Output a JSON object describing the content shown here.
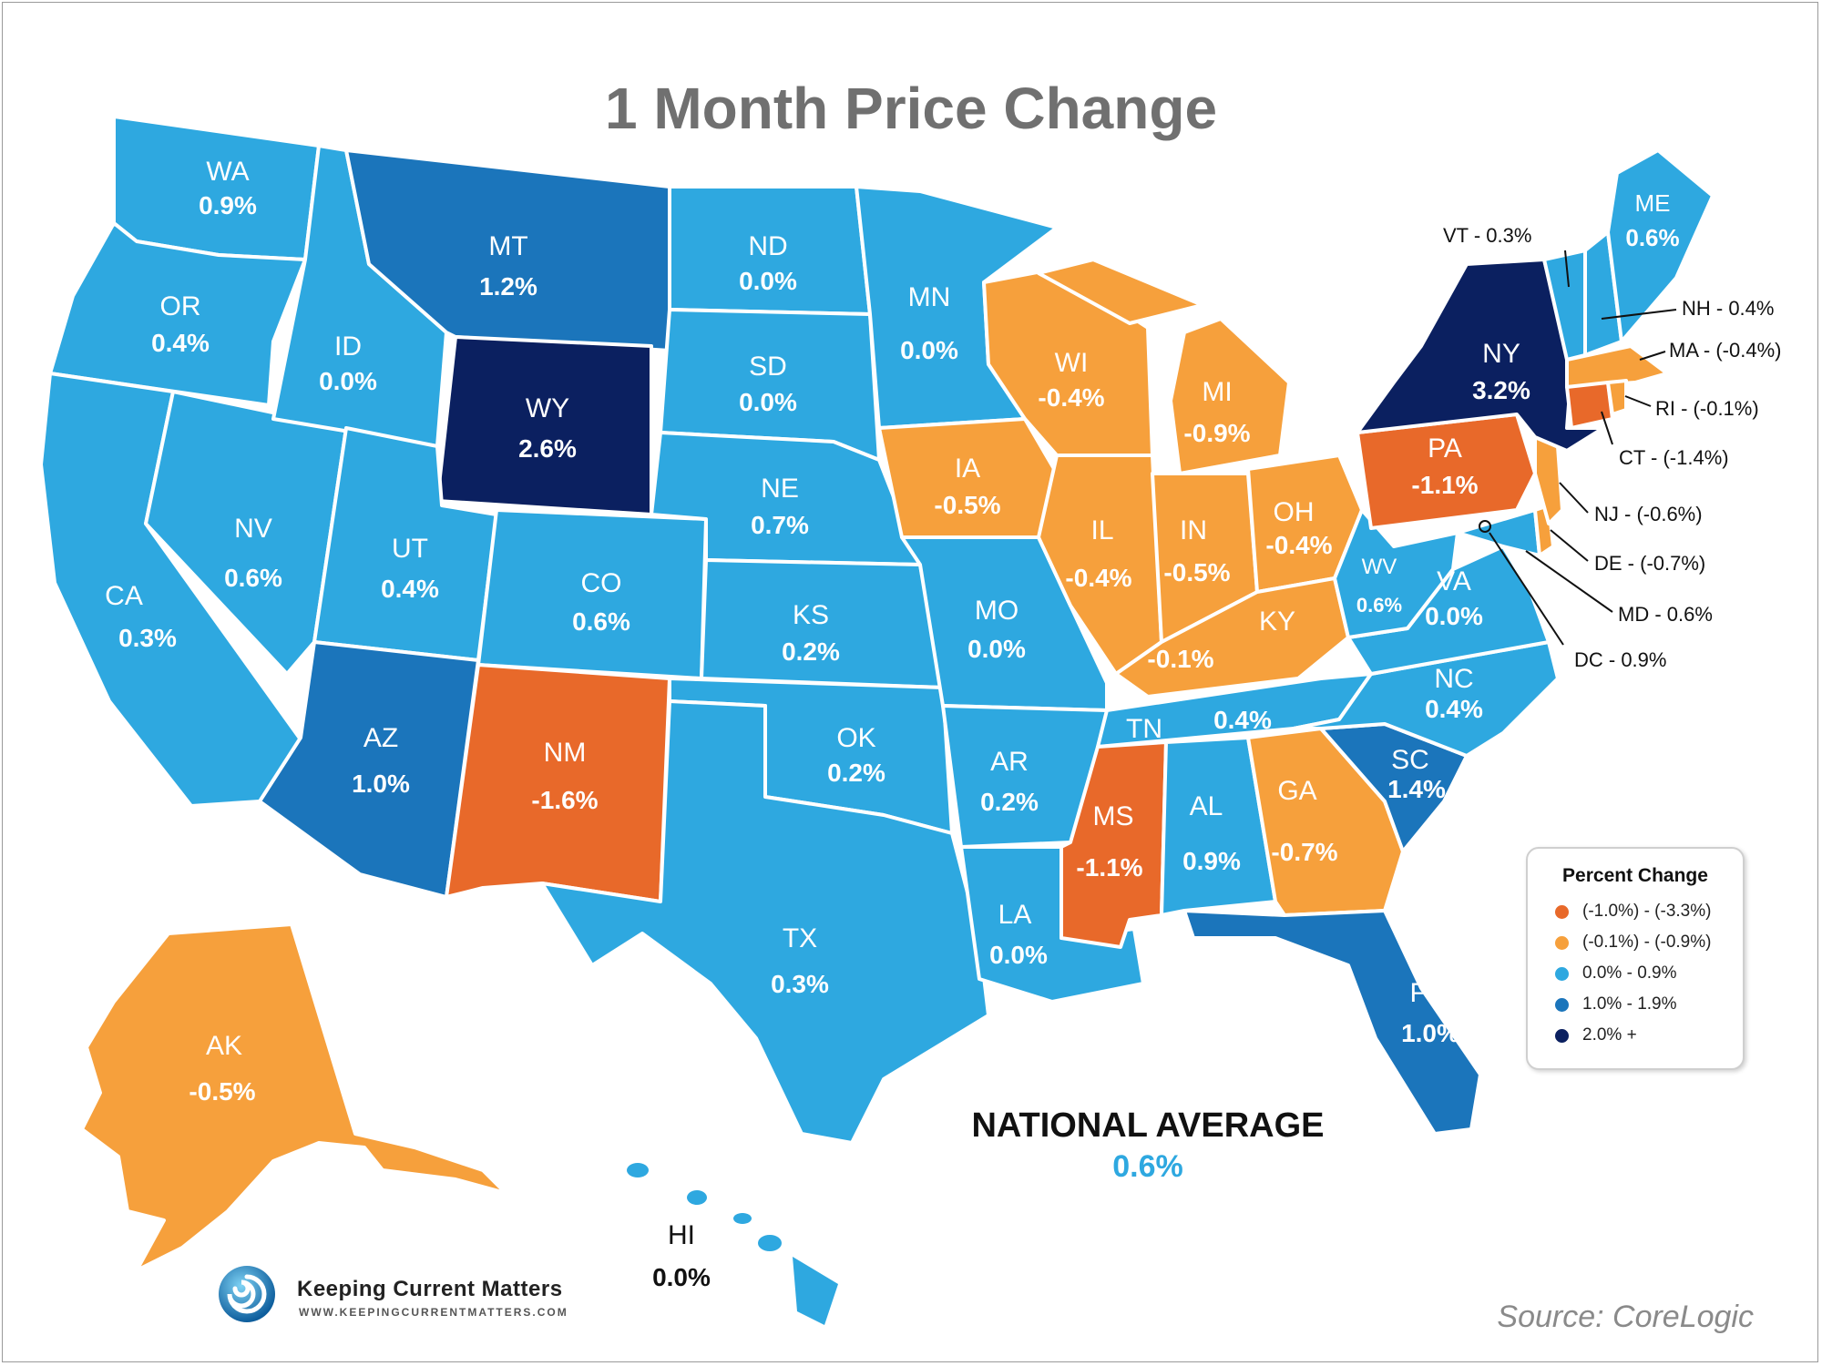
{
  "title": "1 Month Price Change",
  "colors": {
    "tier1_neg_high": "#e8692a",
    "tier2_neg_low": "#f6a03c",
    "tier3_low": "#2ea8e0",
    "tier4_mid": "#1b75bb",
    "tier5_high": "#0b2060"
  },
  "legend": {
    "title": "Percent Change",
    "items": [
      {
        "label": "(-1.0%) - (-3.3%)",
        "color": "#e8692a"
      },
      {
        "label": "(-0.1%) - (-0.9%)",
        "color": "#f6a03c"
      },
      {
        "label": "0.0% - 0.9%",
        "color": "#2ea8e0"
      },
      {
        "label": "1.0% - 1.9%",
        "color": "#1b75bb"
      },
      {
        "label": "2.0% +",
        "color": "#0b2060"
      }
    ]
  },
  "states": {
    "WA": {
      "abbr": "WA",
      "value": "0.9%"
    },
    "OR": {
      "abbr": "OR",
      "value": "0.4%"
    },
    "CA": {
      "abbr": "CA",
      "value": "0.3%"
    },
    "NV": {
      "abbr": "NV",
      "value": "0.6%"
    },
    "ID": {
      "abbr": "ID",
      "value": "0.0%"
    },
    "MT": {
      "abbr": "MT",
      "value": "1.2%"
    },
    "WY": {
      "abbr": "WY",
      "value": "2.6%"
    },
    "UT": {
      "abbr": "UT",
      "value": "0.4%"
    },
    "AZ": {
      "abbr": "AZ",
      "value": "1.0%"
    },
    "CO": {
      "abbr": "CO",
      "value": "0.6%"
    },
    "NM": {
      "abbr": "NM",
      "value": "-1.6%"
    },
    "ND": {
      "abbr": "ND",
      "value": "0.0%"
    },
    "SD": {
      "abbr": "SD",
      "value": "0.0%"
    },
    "NE": {
      "abbr": "NE",
      "value": "0.7%"
    },
    "KS": {
      "abbr": "KS",
      "value": "0.2%"
    },
    "OK": {
      "abbr": "OK",
      "value": "0.2%"
    },
    "TX": {
      "abbr": "TX",
      "value": "0.3%"
    },
    "MN": {
      "abbr": "MN",
      "value": "0.0%"
    },
    "IA": {
      "abbr": "IA",
      "value": "-0.5%"
    },
    "MO": {
      "abbr": "MO",
      "value": "0.0%"
    },
    "AR": {
      "abbr": "AR",
      "value": "0.2%"
    },
    "LA": {
      "abbr": "LA",
      "value": "0.0%"
    },
    "WI": {
      "abbr": "WI",
      "value": "-0.4%"
    },
    "IL": {
      "abbr": "IL",
      "value": "-0.4%"
    },
    "MI": {
      "abbr": "MI",
      "value": "-0.9%"
    },
    "IN": {
      "abbr": "IN",
      "value": "-0.5%"
    },
    "OH": {
      "abbr": "OH",
      "value": "-0.4%"
    },
    "KY": {
      "abbr": "KY",
      "value": "-0.1%"
    },
    "TN": {
      "abbr": "TN",
      "value": "0.4%"
    },
    "MS": {
      "abbr": "MS",
      "value": "-1.1%"
    },
    "AL": {
      "abbr": "AL",
      "value": "0.9%"
    },
    "GA": {
      "abbr": "GA",
      "value": "-0.7%"
    },
    "FL": {
      "abbr": "FL",
      "value": "1.0%"
    },
    "SC": {
      "abbr": "SC",
      "value": "1.4%"
    },
    "NC": {
      "abbr": "NC",
      "value": "0.4%"
    },
    "VA": {
      "abbr": "VA",
      "value": "0.0%"
    },
    "WV": {
      "abbr": "WV",
      "value": "0.6%"
    },
    "PA": {
      "abbr": "PA",
      "value": "-1.1%"
    },
    "NY": {
      "abbr": "NY",
      "value": "3.2%"
    },
    "ME": {
      "abbr": "ME",
      "value": "0.6%"
    },
    "AK": {
      "abbr": "AK",
      "value": "-0.5%"
    },
    "HI": {
      "abbr": "HI",
      "value": "0.0%"
    }
  },
  "callouts": {
    "VT": "VT - 0.3%",
    "NH": "NH - 0.4%",
    "MA": "MA - (-0.4%)",
    "RI": "RI - (-0.1%)",
    "CT": "CT - (-1.4%)",
    "NJ": "NJ - (-0.6%)",
    "DE": "DE - (-0.7%)",
    "MD": "MD - 0.6%",
    "DC": "DC - 0.9%"
  },
  "national_average": {
    "label": "NATIONAL AVERAGE",
    "value": "0.6%"
  },
  "brand": {
    "name": "Keeping Current Matters",
    "url": "WWW.KEEPINGCURRENTMATTERS.COM"
  },
  "source": "Source: CoreLogic"
}
